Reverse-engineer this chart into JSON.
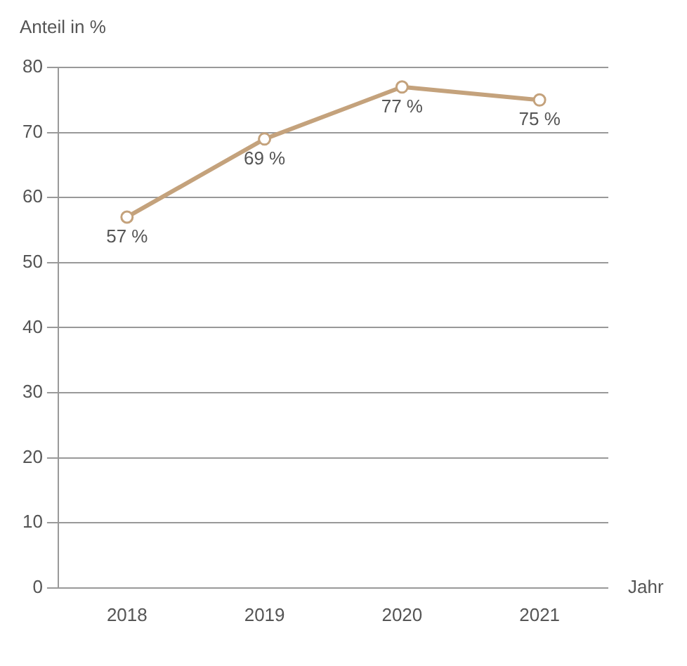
{
  "chart_data": {
    "type": "line",
    "ylabel": "Anteil in %",
    "xlabel": "Jahr",
    "categories": [
      "2018",
      "2019",
      "2020",
      "2021"
    ],
    "series": [
      {
        "color": "#c4a27c",
        "values": [
          57,
          69,
          77,
          75
        ],
        "value_labels": [
          "57 %",
          "69 %",
          "77 %",
          "75 %"
        ]
      }
    ],
    "ylim": [
      0,
      80
    ],
    "yticks": [
      0,
      10,
      20,
      30,
      40,
      50,
      60,
      70,
      80
    ],
    "grid": "y",
    "legend": false,
    "marker": "circle",
    "line_style": "solid"
  }
}
